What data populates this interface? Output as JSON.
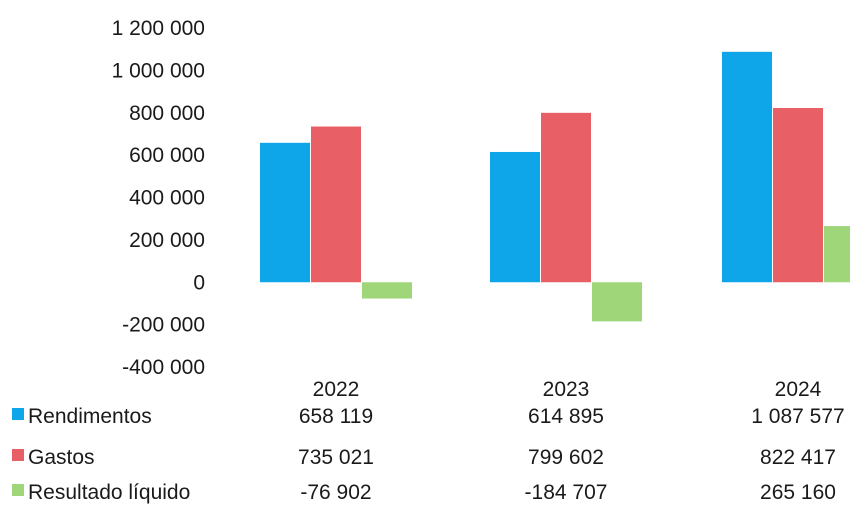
{
  "chart_data": {
    "type": "bar",
    "categories": [
      "2022",
      "2023",
      "2024"
    ],
    "series": [
      {
        "name": "Rendimentos",
        "values": [
          658119,
          614895,
          1087577
        ],
        "labels": [
          "658 119",
          "614 895",
          "1 087 577"
        ],
        "color": "#0ea5e9"
      },
      {
        "name": "Gastos",
        "values": [
          735021,
          799602,
          822417
        ],
        "labels": [
          "735 021",
          "799 602",
          "822 417"
        ],
        "color": "#e85f66"
      },
      {
        "name": "Resultado líquido",
        "values": [
          -76902,
          -184707,
          265160
        ],
        "labels": [
          "-76 902",
          "-184 707",
          "265 160"
        ],
        "color": "#9fd679"
      }
    ],
    "ylim": [
      -400000,
      1200000
    ],
    "yticks": [
      1200000,
      1000000,
      800000,
      600000,
      400000,
      200000,
      0,
      -200000,
      -400000
    ],
    "ytick_labels": [
      "1 200 000",
      "1 000 000",
      "800 000",
      "600 000",
      "400 000",
      "200 000",
      "0",
      "-200 000",
      "-400 000"
    ],
    "grid": false,
    "legend": "bottom-left data table"
  }
}
